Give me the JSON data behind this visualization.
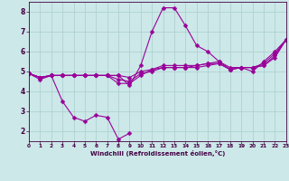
{
  "x": [
    0,
    1,
    2,
    3,
    4,
    5,
    6,
    7,
    8,
    9,
    10,
    11,
    12,
    13,
    14,
    15,
    16,
    17,
    18,
    19,
    20,
    21,
    22,
    23
  ],
  "line_volatile": [
    4.9,
    4.6,
    4.8,
    3.5,
    2.7,
    2.5,
    2.8,
    2.7,
    1.6,
    1.9,
    null,
    null,
    null,
    null,
    null,
    null,
    null,
    null,
    null,
    null,
    null,
    null,
    null,
    null
  ],
  "line_main": [
    4.9,
    4.7,
    4.8,
    4.8,
    4.8,
    4.8,
    4.8,
    4.8,
    4.8,
    4.3,
    5.3,
    7.0,
    8.2,
    8.2,
    7.3,
    6.3,
    6.0,
    5.5,
    5.1,
    5.2,
    5.0,
    5.5,
    6.0,
    6.6
  ],
  "line_avg1": [
    4.9,
    4.7,
    4.8,
    4.8,
    4.8,
    4.8,
    4.8,
    4.8,
    4.4,
    4.4,
    4.8,
    5.1,
    5.3,
    5.3,
    5.3,
    5.3,
    5.4,
    5.4,
    5.1,
    5.2,
    5.2,
    5.3,
    5.8,
    6.6
  ],
  "line_avg2": [
    4.9,
    4.7,
    4.8,
    4.8,
    4.8,
    4.8,
    4.8,
    4.8,
    4.6,
    4.5,
    4.9,
    5.0,
    5.2,
    5.2,
    5.2,
    5.2,
    5.3,
    5.4,
    5.1,
    5.2,
    5.2,
    5.3,
    5.7,
    6.6
  ],
  "line_avg3": [
    4.9,
    4.7,
    4.8,
    4.8,
    4.8,
    4.8,
    4.8,
    4.8,
    4.8,
    4.7,
    5.0,
    5.1,
    5.2,
    5.2,
    5.2,
    5.3,
    5.4,
    5.5,
    5.2,
    5.2,
    5.2,
    5.4,
    5.9,
    6.6
  ],
  "bg_color": "#cce8e8",
  "line_color": "#990099",
  "grid_color": "#aacece",
  "xlabel": "Windchill (Refroidissement éolien,°C)",
  "xlim": [
    0,
    23
  ],
  "ylim": [
    1.5,
    8.5
  ],
  "yticks": [
    2,
    3,
    4,
    5,
    6,
    7,
    8
  ],
  "xticks": [
    0,
    1,
    2,
    3,
    4,
    5,
    6,
    7,
    8,
    9,
    10,
    11,
    12,
    13,
    14,
    15,
    16,
    17,
    18,
    19,
    20,
    21,
    22,
    23
  ]
}
